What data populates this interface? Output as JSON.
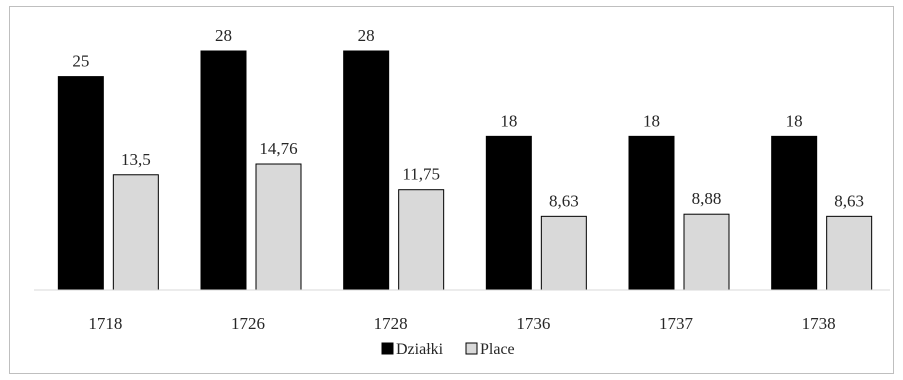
{
  "chart_data": {
    "type": "bar",
    "categories": [
      "1718",
      "1726",
      "1728",
      "1736",
      "1737",
      "1738"
    ],
    "series": [
      {
        "name": "Działki",
        "values": [
          25,
          28,
          28,
          18,
          18,
          18
        ],
        "labels": [
          "25",
          "28",
          "28",
          "18",
          "18",
          "18"
        ],
        "color": "#000000"
      },
      {
        "name": "Place",
        "values": [
          13.5,
          14.76,
          11.75,
          8.63,
          8.88,
          8.63
        ],
        "labels": [
          "13,5",
          "14,76",
          "11,75",
          "8,63",
          "8,88",
          "8,63"
        ],
        "color": "#d9d9d9"
      }
    ],
    "title": "",
    "xlabel": "",
    "ylabel": "",
    "ylim": [
      0,
      28
    ],
    "grid": false,
    "legend": "bottom"
  }
}
